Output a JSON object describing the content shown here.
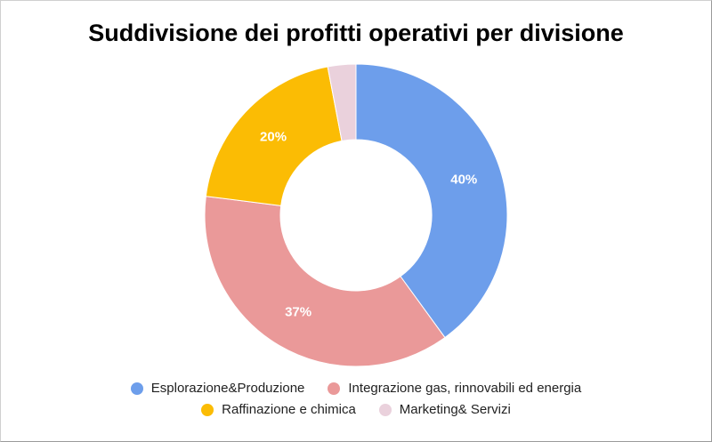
{
  "chart_data": {
    "type": "pie",
    "variant": "donut",
    "title": "Suddivisione dei profitti operativi per divisione",
    "series": [
      {
        "name": "Esplorazione&Produzione",
        "value": 40,
        "label": "40%",
        "color": "#6d9eeb"
      },
      {
        "name": "Integrazione gas, rinnovabili ed energia",
        "value": 37,
        "label": "37%",
        "color": "#ea9999"
      },
      {
        "name": "Raffinazione e chimica",
        "value": 20,
        "label": "20%",
        "color": "#fbbc04"
      },
      {
        "name": "Marketing& Servizi",
        "value": 3,
        "label": "",
        "color": "#ead1dc"
      }
    ],
    "legend_position": "bottom"
  }
}
